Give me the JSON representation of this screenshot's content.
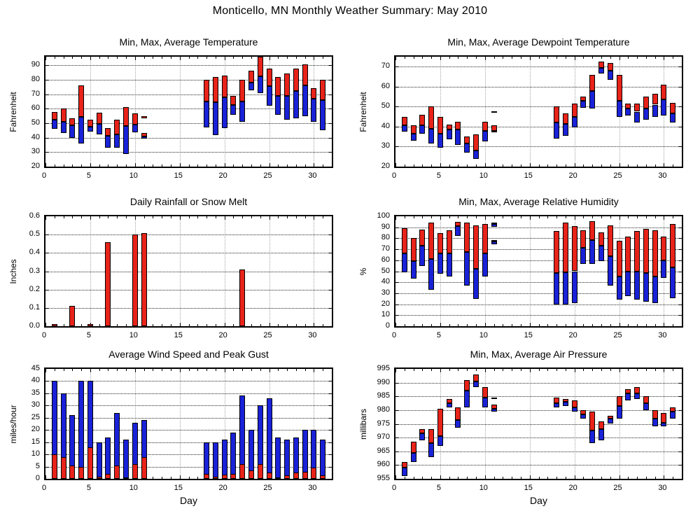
{
  "page_title": "Monticello, MN Monthly Weather Summary: May 2010",
  "colors": {
    "bar_red": "#e8231a",
    "bar_blue": "#1a22d8",
    "frame_black": "#000000",
    "background": "#ffffff"
  },
  "chart_data": [
    {
      "id": "temperature",
      "type": "range-bar",
      "title": "Min, Max, Average Temperature",
      "ylabel": "Fahrenheit",
      "xlabel": "",
      "ylim": [
        20,
        96
      ],
      "yticks": [
        20,
        30,
        40,
        50,
        60,
        70,
        80,
        90
      ],
      "xlim": [
        0,
        32
      ],
      "xticks": [
        0,
        5,
        10,
        15,
        20,
        25,
        30
      ],
      "grid": true,
      "series": [
        {
          "name": "min to average",
          "color": "blue"
        },
        {
          "name": "average to max",
          "color": "red"
        }
      ],
      "columns": [
        "day",
        "min",
        "avg",
        "max"
      ],
      "rows": [
        [
          1,
          46,
          52.5,
          58
        ],
        [
          2,
          43,
          51,
          60
        ],
        [
          3,
          40,
          48.5,
          53.5
        ],
        [
          4,
          36,
          54.5,
          76
        ],
        [
          5,
          44,
          47.5,
          52.5
        ],
        [
          6,
          42.5,
          49.5,
          57.5
        ],
        [
          7,
          33,
          41.5,
          46.5
        ],
        [
          8,
          33,
          42.5,
          52.5
        ],
        [
          9,
          28.5,
          48,
          61
        ],
        [
          10,
          43.5,
          49,
          57
        ],
        [
          11,
          39.5,
          41,
          43
        ],
        [
          18,
          47,
          65,
          80
        ],
        [
          19,
          42,
          64.5,
          82
        ],
        [
          20,
          46.5,
          68,
          83
        ],
        [
          21,
          56,
          62.5,
          69
        ],
        [
          22,
          51,
          65,
          80
        ],
        [
          23,
          73,
          78,
          86.5
        ],
        [
          24,
          71,
          82.5,
          96
        ],
        [
          25,
          62,
          75.5,
          88
        ],
        [
          26,
          56,
          69,
          82
        ],
        [
          27,
          52.5,
          69,
          84.5
        ],
        [
          28,
          53.5,
          72.5,
          88
        ],
        [
          29,
          55,
          76,
          90.5
        ],
        [
          30,
          51,
          67,
          74
        ],
        [
          31,
          45,
          66,
          80
        ]
      ],
      "extra_segments": [
        {
          "day": 11,
          "color": "red",
          "from": 53.5,
          "to": 55
        }
      ]
    },
    {
      "id": "dewpoint",
      "type": "range-bar",
      "title": "Min, Max, Average Dewpoint Temperature",
      "ylabel": "Fahrenheit",
      "xlabel": "",
      "ylim": [
        20,
        75
      ],
      "yticks": [
        20,
        30,
        40,
        50,
        60,
        70
      ],
      "xlim": [
        0,
        32
      ],
      "xticks": [
        0,
        5,
        10,
        15,
        20,
        25,
        30
      ],
      "grid": true,
      "series": [
        {
          "name": "min to average",
          "color": "blue"
        },
        {
          "name": "average to max",
          "color": "red"
        }
      ],
      "columns": [
        "day",
        "min",
        "avg",
        "max"
      ],
      "rows": [
        [
          1,
          37.5,
          40.5,
          45
        ],
        [
          2,
          33,
          36.5,
          40.5
        ],
        [
          3,
          36.5,
          40.5,
          46
        ],
        [
          4,
          31.5,
          39,
          50
        ],
        [
          5,
          29.5,
          36.5,
          45
        ],
        [
          6,
          33.5,
          38.5,
          41
        ],
        [
          7,
          31,
          38.5,
          42.5
        ],
        [
          8,
          27,
          31.5,
          35
        ],
        [
          9,
          24,
          28,
          36
        ],
        [
          10,
          32.5,
          38,
          42.5
        ],
        [
          11,
          37.5,
          38,
          40.5
        ],
        [
          18,
          34,
          42,
          50
        ],
        [
          19,
          35.5,
          41.5,
          46.5
        ],
        [
          20,
          39.5,
          45,
          51.5
        ],
        [
          21,
          49.5,
          53,
          55
        ],
        [
          22,
          49,
          58,
          66
        ],
        [
          23,
          66.5,
          69.5,
          72.5
        ],
        [
          24,
          63.5,
          68,
          72
        ],
        [
          25,
          45,
          53,
          66
        ],
        [
          26,
          45.5,
          49,
          51.5
        ],
        [
          27,
          42,
          47.5,
          51.5
        ],
        [
          28,
          43.5,
          49,
          55
        ],
        [
          29,
          45,
          51,
          56.5
        ],
        [
          30,
          45.5,
          53.5,
          61
        ],
        [
          31,
          42,
          46.5,
          52
        ]
      ],
      "extra_segments": [
        {
          "day": 11,
          "color": "blue",
          "from": 46.8,
          "to": 47.6
        }
      ]
    },
    {
      "id": "rainfall",
      "type": "bar",
      "title": "Daily Rainfall or Snow Melt",
      "ylabel": "Inches",
      "xlabel": "",
      "ylim": [
        0,
        0.6
      ],
      "yticks": [
        0,
        0.1,
        0.2,
        0.3,
        0.4,
        0.5,
        0.6
      ],
      "ytick_labels": [
        "0.0",
        "0.1",
        "0.2",
        "0.3",
        "0.4",
        "0.5",
        "0.6"
      ],
      "xlim": [
        0,
        32
      ],
      "xticks": [
        0,
        5,
        10,
        15,
        20,
        25,
        30
      ],
      "grid": true,
      "series": [
        {
          "name": "daily rainfall",
          "color": "red"
        }
      ],
      "columns": [
        "day",
        "inches"
      ],
      "rows": [
        [
          1,
          0.01
        ],
        [
          3,
          0.11
        ],
        [
          5,
          0.01
        ],
        [
          7,
          0.46
        ],
        [
          10,
          0.5
        ],
        [
          11,
          0.51
        ],
        [
          22,
          0.31
        ]
      ],
      "extra_segments": []
    },
    {
      "id": "humidity",
      "type": "range-bar",
      "title": "Min, Max, Average Relative Humidity",
      "ylabel": "%",
      "xlabel": "",
      "ylim": [
        0,
        100
      ],
      "yticks": [
        0,
        10,
        20,
        30,
        40,
        50,
        60,
        70,
        80,
        90,
        100
      ],
      "xlim": [
        0,
        32
      ],
      "xticks": [
        0,
        5,
        10,
        15,
        20,
        25,
        30
      ],
      "grid": true,
      "series": [
        {
          "name": "min to average",
          "color": "blue"
        },
        {
          "name": "average to max",
          "color": "red"
        }
      ],
      "columns": [
        "day",
        "min",
        "avg",
        "max"
      ],
      "rows": [
        [
          1,
          49,
          66,
          89
        ],
        [
          2,
          43,
          59,
          80
        ],
        [
          3,
          55,
          73.5,
          88
        ],
        [
          4,
          33,
          61,
          94
        ],
        [
          5,
          48,
          66,
          85
        ],
        [
          6,
          45,
          66,
          87
        ],
        [
          7,
          82,
          91,
          95
        ],
        [
          8,
          37,
          67.5,
          94
        ],
        [
          9,
          25,
          52.5,
          92
        ],
        [
          10,
          45,
          66,
          93
        ],
        [
          11,
          74.5,
          77,
          78.5
        ],
        [
          18,
          20,
          48.5,
          86.5
        ],
        [
          19,
          20,
          49,
          94
        ],
        [
          20,
          21,
          50,
          91
        ],
        [
          21,
          56.5,
          71.5,
          87.5
        ],
        [
          22,
          57,
          78.5,
          95.5
        ],
        [
          23,
          59.5,
          73.5,
          85.5
        ],
        [
          24,
          37,
          64,
          91.5
        ],
        [
          25,
          24.5,
          45.5,
          77.5
        ],
        [
          26,
          27.5,
          49.5,
          81.5
        ],
        [
          27,
          24.5,
          49.5,
          86.5
        ],
        [
          28,
          22.5,
          48.5,
          88.5
        ],
        [
          29,
          21,
          45,
          87.5
        ],
        [
          30,
          44,
          60,
          81.5
        ],
        [
          31,
          25.5,
          53.5,
          93
        ]
      ],
      "extra_segments": [
        {
          "day": 11,
          "color": "blue",
          "from": 90.5,
          "to": 93
        },
        {
          "day": 11,
          "color": "red",
          "from": 93,
          "to": 94.5
        }
      ]
    },
    {
      "id": "wind",
      "type": "overlap-bar",
      "title": "Average Wind Speed and Peak Gust",
      "ylabel": "miles/hour",
      "xlabel": "Day",
      "ylim": [
        0,
        45
      ],
      "yticks": [
        0,
        5,
        10,
        15,
        20,
        25,
        30,
        35,
        40,
        45
      ],
      "xlim": [
        0,
        32
      ],
      "xticks": [
        0,
        5,
        10,
        15,
        20,
        25,
        30
      ],
      "grid": true,
      "series": [
        {
          "name": "peak gust",
          "color": "blue"
        },
        {
          "name": "average wind speed",
          "color": "red"
        }
      ],
      "columns": [
        "day",
        "avg_speed",
        "peak_gust"
      ],
      "rows": [
        [
          1,
          10,
          40
        ],
        [
          2,
          9,
          35
        ],
        [
          3,
          5.5,
          26
        ],
        [
          4,
          5,
          40
        ],
        [
          5,
          13,
          40
        ],
        [
          6,
          1,
          15
        ],
        [
          7,
          2,
          17
        ],
        [
          8,
          5.5,
          27
        ],
        [
          9,
          0.7,
          16
        ],
        [
          10,
          6,
          23
        ],
        [
          11,
          9,
          24
        ],
        [
          18,
          2,
          15
        ],
        [
          19,
          1,
          15
        ],
        [
          20,
          1.7,
          16
        ],
        [
          21,
          2,
          19
        ],
        [
          22,
          6,
          34
        ],
        [
          23,
          3.5,
          20
        ],
        [
          24,
          6,
          30
        ],
        [
          25,
          2.5,
          33
        ],
        [
          26,
          0.7,
          17
        ],
        [
          27,
          1.5,
          16
        ],
        [
          28,
          2.5,
          17
        ],
        [
          29,
          3,
          20
        ],
        [
          30,
          4.7,
          20
        ],
        [
          31,
          1.5,
          16
        ]
      ],
      "extra_segments": []
    },
    {
      "id": "pressure",
      "type": "range-bar",
      "title": "Min, Max, Average Air Pressure",
      "ylabel": "millibars",
      "xlabel": "Day",
      "ylim": [
        955,
        995
      ],
      "yticks": [
        955,
        960,
        965,
        970,
        975,
        980,
        985,
        990,
        995
      ],
      "xlim": [
        0,
        32
      ],
      "xticks": [
        0,
        5,
        10,
        15,
        20,
        25,
        30
      ],
      "grid": true,
      "series": [
        {
          "name": "min to average",
          "color": "blue"
        },
        {
          "name": "average to max",
          "color": "red"
        }
      ],
      "columns": [
        "day",
        "min",
        "avg",
        "max"
      ],
      "rows": [
        [
          1,
          956,
          959,
          961
        ],
        [
          2,
          961,
          964.5,
          968.5
        ],
        [
          3,
          969,
          971.5,
          973
        ],
        [
          4,
          963,
          968,
          973
        ],
        [
          5,
          967,
          970.5,
          980.5
        ],
        [
          6,
          981,
          982.5,
          984
        ],
        [
          7,
          973.5,
          976.5,
          981
        ],
        [
          8,
          981,
          987,
          991
        ],
        [
          9,
          988.5,
          990.5,
          993
        ],
        [
          10,
          981,
          984.5,
          988.5
        ],
        [
          11,
          979.5,
          980.5,
          982
        ],
        [
          18,
          981,
          982.5,
          984.5
        ],
        [
          19,
          981.5,
          983,
          984
        ],
        [
          20,
          979.5,
          981,
          983.5
        ],
        [
          21,
          977,
          978.5,
          980
        ],
        [
          22,
          968,
          972.5,
          979.5
        ],
        [
          23,
          969,
          973,
          976
        ],
        [
          24,
          975,
          977,
          978
        ],
        [
          25,
          977,
          981.5,
          985
        ],
        [
          26,
          983.5,
          986,
          987.5
        ],
        [
          27,
          984,
          986,
          988.5
        ],
        [
          28,
          980,
          982.5,
          985
        ],
        [
          29,
          974,
          977,
          980
        ],
        [
          30,
          974,
          975.5,
          979
        ],
        [
          31,
          977,
          979.5,
          981
        ]
      ],
      "extra_segments": [
        {
          "day": 11,
          "color": "black",
          "from": 984.1,
          "to": 984.6
        }
      ]
    }
  ]
}
